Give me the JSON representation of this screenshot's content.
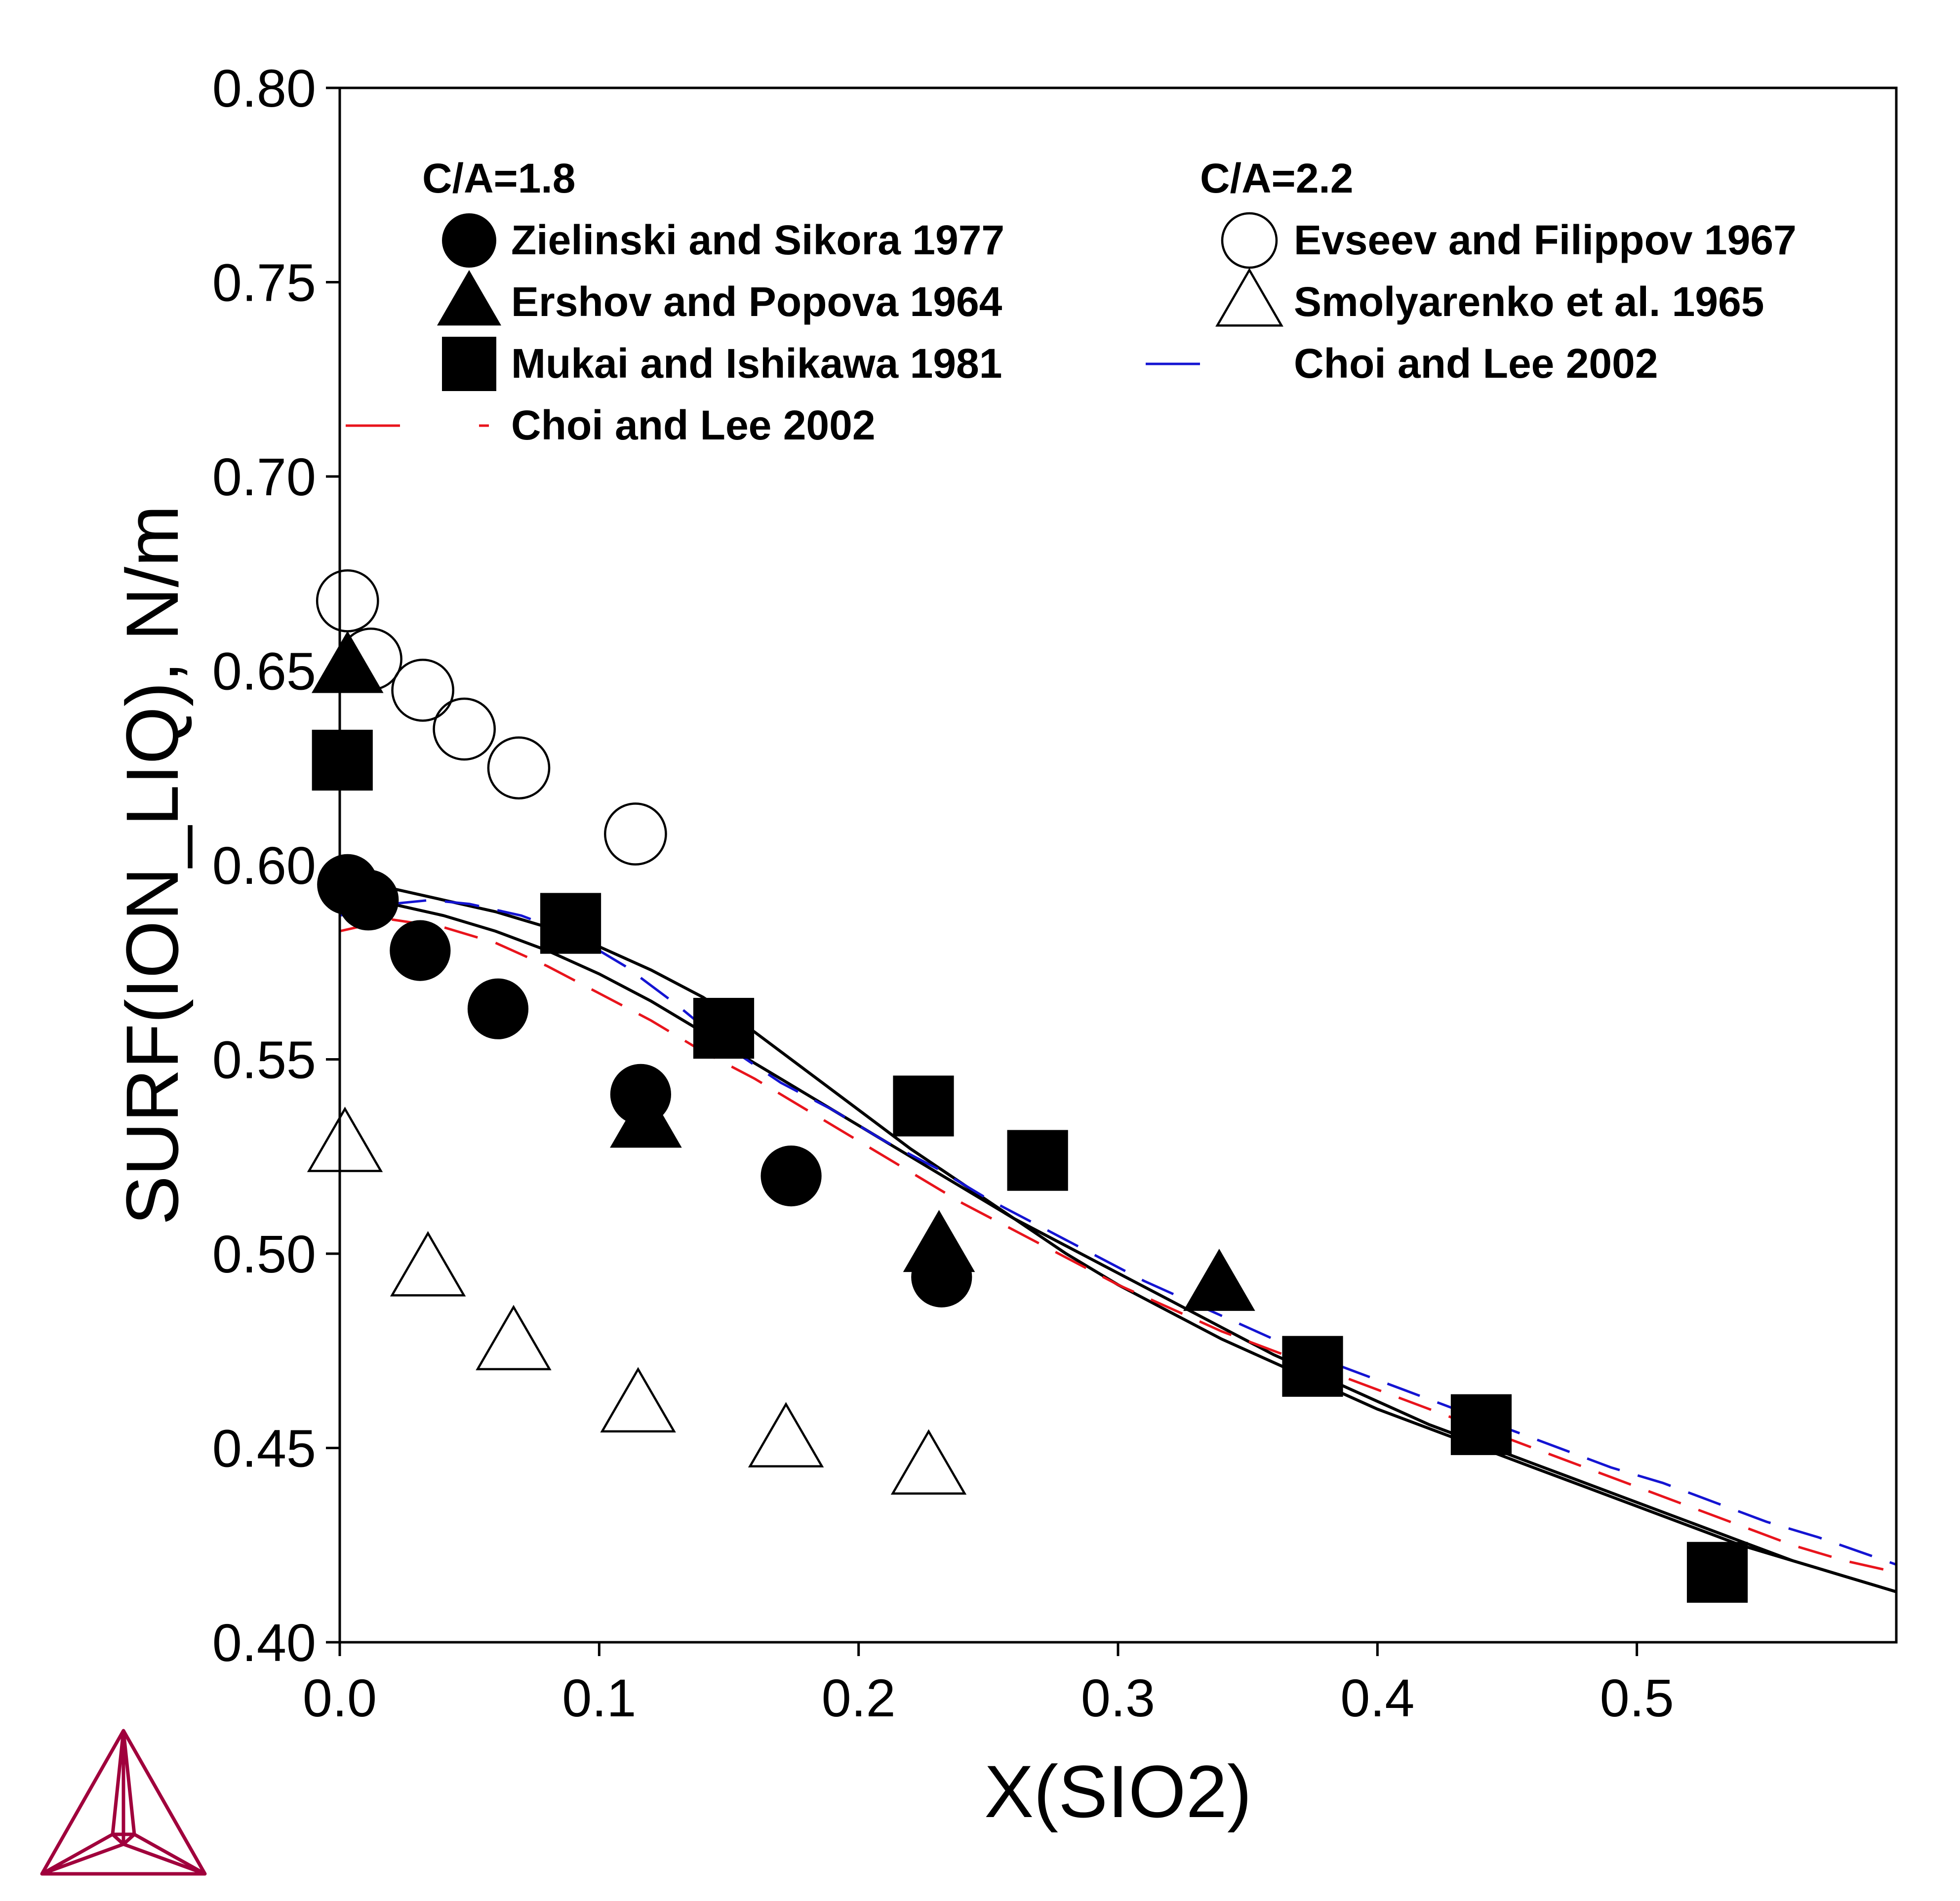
{
  "chart_data": {
    "type": "scatter",
    "xlabel": "X(SIO2)",
    "ylabel": "SURF(ION_LIQ), N/m",
    "xlim": [
      0,
      0.6
    ],
    "ylim": [
      0.4,
      0.8
    ],
    "xticks": [
      "0.0",
      "0.1",
      "0.2",
      "0.3",
      "0.4",
      "0.5"
    ],
    "yticks": [
      "0.40",
      "0.45",
      "0.50",
      "0.55",
      "0.60",
      "0.65",
      "0.70",
      "0.75",
      "0.80"
    ],
    "legend_placement": "top",
    "legend_groups": [
      "C/A=1.8",
      "C/A=2.2"
    ],
    "series": [
      {
        "name": "Zielinski and Sikora 1977",
        "group": "C/A=1.8",
        "marker": "circle-filled",
        "color": "#000000",
        "points": [
          [
            0.003,
            0.595
          ],
          [
            0.011,
            0.591
          ],
          [
            0.031,
            0.578
          ],
          [
            0.061,
            0.563
          ],
          [
            0.116,
            0.541
          ],
          [
            0.174,
            0.52
          ],
          [
            0.232,
            0.494
          ]
        ]
      },
      {
        "name": "Ershov and Popova 1964",
        "group": "C/A=1.8",
        "marker": "triangle-filled",
        "color": "#000000",
        "points": [
          [
            0.003,
            0.651
          ],
          [
            0.118,
            0.534
          ],
          [
            0.231,
            0.502
          ],
          [
            0.339,
            0.492
          ]
        ]
      },
      {
        "name": "Mukai and Ishikawa 1981",
        "group": "C/A=1.8",
        "marker": "square-filled",
        "color": "#000000",
        "points": [
          [
            0.001,
            0.627
          ],
          [
            0.089,
            0.585
          ],
          [
            0.148,
            0.558
          ],
          [
            0.225,
            0.538
          ],
          [
            0.269,
            0.524
          ],
          [
            0.375,
            0.471
          ],
          [
            0.44,
            0.456
          ],
          [
            0.531,
            0.418
          ]
        ]
      },
      {
        "name": "Choi and Lee 2002",
        "group": "C/A=1.8",
        "marker": "line-dashed",
        "color": "#e8141c",
        "points": [
          [
            0,
            0.583
          ],
          [
            0.02,
            0.586
          ],
          [
            0.04,
            0.584
          ],
          [
            0.06,
            0.58
          ],
          [
            0.08,
            0.574
          ],
          [
            0.1,
            0.567
          ],
          [
            0.12,
            0.56
          ],
          [
            0.14,
            0.552
          ],
          [
            0.16,
            0.545
          ],
          [
            0.18,
            0.537
          ],
          [
            0.2,
            0.529
          ],
          [
            0.22,
            0.521
          ],
          [
            0.24,
            0.513
          ],
          [
            0.26,
            0.506
          ],
          [
            0.28,
            0.499
          ],
          [
            0.3,
            0.492
          ],
          [
            0.32,
            0.486
          ],
          [
            0.34,
            0.48
          ],
          [
            0.36,
            0.475
          ],
          [
            0.38,
            0.47
          ],
          [
            0.4,
            0.465
          ],
          [
            0.42,
            0.46
          ],
          [
            0.44,
            0.455
          ],
          [
            0.46,
            0.45
          ],
          [
            0.48,
            0.445
          ],
          [
            0.5,
            0.44
          ],
          [
            0.52,
            0.435
          ],
          [
            0.54,
            0.43
          ],
          [
            0.56,
            0.425
          ],
          [
            0.58,
            0.421
          ],
          [
            0.6,
            0.418
          ]
        ]
      },
      {
        "name": "Evseev and Filippov 1967",
        "group": "C/A=2.2",
        "marker": "circle-open",
        "color": "#000000",
        "points": [
          [
            0.003,
            0.668
          ],
          [
            0.012,
            0.653
          ],
          [
            0.032,
            0.645
          ],
          [
            0.048,
            0.635
          ],
          [
            0.069,
            0.625
          ],
          [
            0.114,
            0.608
          ]
        ]
      },
      {
        "name": "Smolyarenko et al. 1965",
        "group": "C/A=2.2",
        "marker": "triangle-open",
        "color": "#000000",
        "points": [
          [
            0.002,
            0.528
          ],
          [
            0.034,
            0.496
          ],
          [
            0.067,
            0.477
          ],
          [
            0.115,
            0.461
          ],
          [
            0.172,
            0.452
          ],
          [
            0.227,
            0.445
          ]
        ]
      },
      {
        "name": "Choi and Lee 2002",
        "group": "C/A=2.2",
        "marker": "line-dashed",
        "color": "#1414d2",
        "points": [
          [
            0,
            0.587
          ],
          [
            0.02,
            0.59
          ],
          [
            0.035,
            0.591
          ],
          [
            0.05,
            0.59
          ],
          [
            0.07,
            0.587
          ],
          [
            0.09,
            0.582
          ],
          [
            0.11,
            0.574
          ],
          [
            0.13,
            0.564
          ],
          [
            0.15,
            0.553
          ],
          [
            0.17,
            0.544
          ],
          [
            0.19,
            0.537
          ],
          [
            0.21,
            0.529
          ],
          [
            0.23,
            0.522
          ],
          [
            0.25,
            0.514
          ],
          [
            0.27,
            0.507
          ],
          [
            0.29,
            0.5
          ],
          [
            0.31,
            0.493
          ],
          [
            0.33,
            0.487
          ],
          [
            0.35,
            0.481
          ],
          [
            0.37,
            0.475
          ],
          [
            0.39,
            0.47
          ],
          [
            0.41,
            0.465
          ],
          [
            0.43,
            0.46
          ],
          [
            0.45,
            0.455
          ],
          [
            0.47,
            0.45
          ],
          [
            0.49,
            0.445
          ],
          [
            0.51,
            0.441
          ],
          [
            0.53,
            0.436
          ],
          [
            0.55,
            0.431
          ],
          [
            0.57,
            0.427
          ],
          [
            0.6,
            0.42
          ]
        ]
      }
    ],
    "model_curves": [
      {
        "color": "#000000",
        "style": "solid",
        "points": [
          [
            0,
            0.596
          ],
          [
            0.02,
            0.594
          ],
          [
            0.04,
            0.591
          ],
          [
            0.06,
            0.588
          ],
          [
            0.08,
            0.584
          ],
          [
            0.1,
            0.579
          ],
          [
            0.12,
            0.573
          ],
          [
            0.14,
            0.566
          ],
          [
            0.16,
            0.557
          ],
          [
            0.18,
            0.547
          ],
          [
            0.2,
            0.537
          ],
          [
            0.22,
            0.527
          ],
          [
            0.24,
            0.518
          ],
          [
            0.26,
            0.509
          ],
          [
            0.28,
            0.5
          ],
          [
            0.3,
            0.492
          ],
          [
            0.32,
            0.485
          ],
          [
            0.34,
            0.478
          ],
          [
            0.36,
            0.472
          ],
          [
            0.38,
            0.466
          ],
          [
            0.4,
            0.46
          ],
          [
            0.42,
            0.455
          ],
          [
            0.44,
            0.45
          ],
          [
            0.46,
            0.445
          ],
          [
            0.48,
            0.44
          ],
          [
            0.5,
            0.435
          ],
          [
            0.52,
            0.43
          ],
          [
            0.54,
            0.425
          ],
          [
            0.56,
            0.421
          ],
          [
            0.58,
            0.417
          ],
          [
            0.6,
            0.413
          ]
        ]
      },
      {
        "color": "#000000",
        "style": "solid",
        "points": [
          [
            0,
            0.592
          ],
          [
            0.02,
            0.59
          ],
          [
            0.04,
            0.587
          ],
          [
            0.06,
            0.583
          ],
          [
            0.08,
            0.578
          ],
          [
            0.1,
            0.572
          ],
          [
            0.12,
            0.565
          ],
          [
            0.14,
            0.557
          ],
          [
            0.16,
            0.549
          ],
          [
            0.18,
            0.541
          ],
          [
            0.2,
            0.533
          ],
          [
            0.22,
            0.525
          ],
          [
            0.24,
            0.517
          ],
          [
            0.26,
            0.509
          ],
          [
            0.28,
            0.502
          ],
          [
            0.3,
            0.495
          ],
          [
            0.32,
            0.488
          ],
          [
            0.34,
            0.481
          ],
          [
            0.36,
            0.474
          ],
          [
            0.38,
            0.468
          ],
          [
            0.4,
            0.462
          ],
          [
            0.42,
            0.456
          ],
          [
            0.44,
            0.451
          ],
          [
            0.46,
            0.446
          ],
          [
            0.48,
            0.441
          ],
          [
            0.5,
            0.436
          ],
          [
            0.52,
            0.431
          ],
          [
            0.54,
            0.426
          ],
          [
            0.56,
            0.421
          ],
          [
            0.58,
            0.417
          ],
          [
            0.6,
            0.413
          ]
        ]
      }
    ]
  },
  "logo": {
    "name": "thermo-calc-logo-icon",
    "color": "#a0003c"
  }
}
